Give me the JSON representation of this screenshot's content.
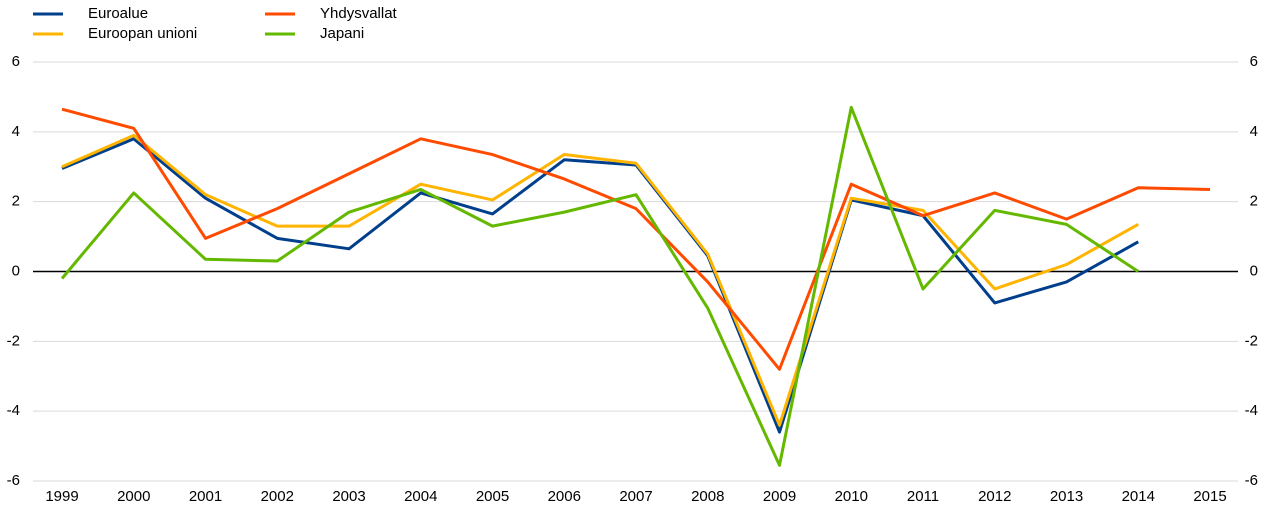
{
  "chart_data": {
    "type": "line",
    "categories": [
      "1999",
      "2000",
      "2001",
      "2002",
      "2003",
      "2004",
      "2005",
      "2006",
      "2007",
      "2008",
      "2009",
      "2010",
      "2011",
      "2012",
      "2013",
      "2014",
      "2015"
    ],
    "series": [
      {
        "name": "Euroalue",
        "color": "#003f8c",
        "values": [
          2.95,
          3.8,
          2.1,
          0.95,
          0.65,
          2.25,
          1.65,
          3.2,
          3.05,
          0.45,
          -4.6,
          2.05,
          1.6,
          -0.9,
          -0.3,
          0.85,
          null
        ]
      },
      {
        "name": "Euroopan unioni",
        "color": "#ffb400",
        "values": [
          3.0,
          3.9,
          2.2,
          1.3,
          1.3,
          2.5,
          2.05,
          3.35,
          3.1,
          0.5,
          -4.4,
          2.1,
          1.75,
          -0.5,
          0.2,
          1.35,
          null
        ]
      },
      {
        "name": "Yhdysvallat",
        "color": "#ff4b00",
        "values": [
          4.65,
          4.1,
          0.95,
          1.8,
          2.8,
          3.8,
          3.35,
          2.65,
          1.8,
          -0.3,
          -2.8,
          2.5,
          1.6,
          2.25,
          1.5,
          2.4,
          2.35
        ]
      },
      {
        "name": "Japani",
        "color": "#65b800",
        "values": [
          -0.2,
          2.25,
          0.35,
          0.3,
          1.7,
          2.35,
          1.3,
          1.7,
          2.2,
          -1.05,
          -5.55,
          4.7,
          -0.5,
          1.75,
          1.35,
          0.0,
          null
        ]
      }
    ],
    "ylim": [
      -6,
      6
    ],
    "yticks": [
      -6,
      -4,
      -2,
      0,
      2,
      4,
      6
    ],
    "y2lim": [
      -6,
      6
    ],
    "y2ticks": [
      -6,
      -4,
      -2,
      0,
      2,
      4,
      6
    ],
    "grid": true,
    "legend": "top-left"
  }
}
